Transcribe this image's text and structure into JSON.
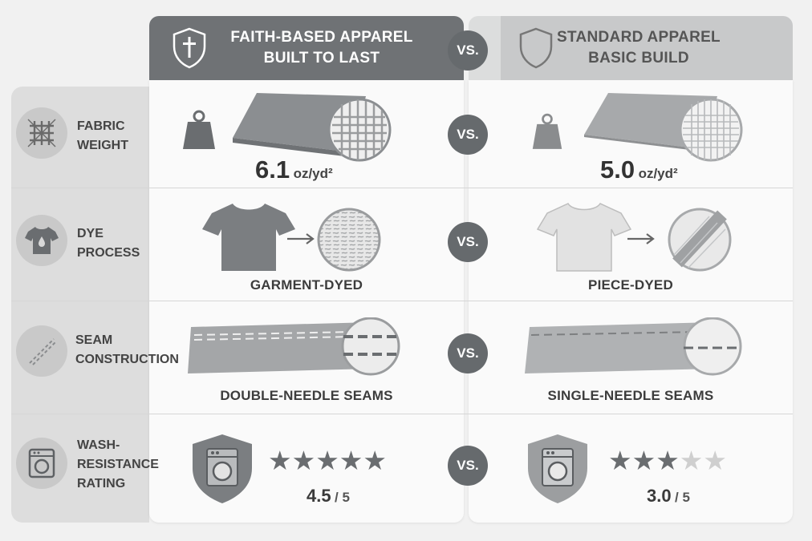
{
  "header": {
    "left_title_line1": "FAITH-BASED APPAREL",
    "left_title_line2": "BUILT TO LAST",
    "right_title_line1": "STANDARD APPAREL",
    "right_title_line2": "BASIC BUILD",
    "vs_label": "VS.",
    "left_icon": "shield-cross-icon",
    "right_icon": "shield-icon"
  },
  "rows": [
    {
      "label_line1": "FABRIC",
      "label_line2": "WEIGHT",
      "icon": "fabric-weave-icon",
      "left": {
        "value": "6.1",
        "unit": "oz/yd²"
      },
      "right": {
        "value": "5.0",
        "unit": "oz/yd²"
      },
      "vs": "VS."
    },
    {
      "label_line1": "DYE",
      "label_line2": "PROCESS",
      "icon": "tshirt-dye-icon",
      "left": {
        "caption": "GARMENT-DYED"
      },
      "right": {
        "caption": "PIECE-DYED"
      },
      "vs": "VS."
    },
    {
      "label_line1": "SEAM",
      "label_line2": "CONSTRUCTION",
      "icon": "seam-icon",
      "left": {
        "caption": "DOUBLE-NEEDLE SEAMS"
      },
      "right": {
        "caption": "SINGLE-NEEDLE SEAMS"
      },
      "vs": "VS."
    },
    {
      "label_line1": "WASH-",
      "label_line2": "RESISTANCE",
      "label_line3": "RATING",
      "icon": "washing-machine-icon",
      "left": {
        "rating": "4.5",
        "scale": "/ 5",
        "stars_filled": 5,
        "stars_total": 5
      },
      "right": {
        "rating": "3.0",
        "scale": "/ 5",
        "stars_filled": 3,
        "stars_total": 5
      },
      "vs": "VS."
    }
  ],
  "colors": {
    "header_dark": "#6f7275",
    "header_light": "#c8c9ca",
    "vs_badge": "#666a6d",
    "star_filled": "#6a6d70",
    "star_empty": "#cfcfcf"
  }
}
